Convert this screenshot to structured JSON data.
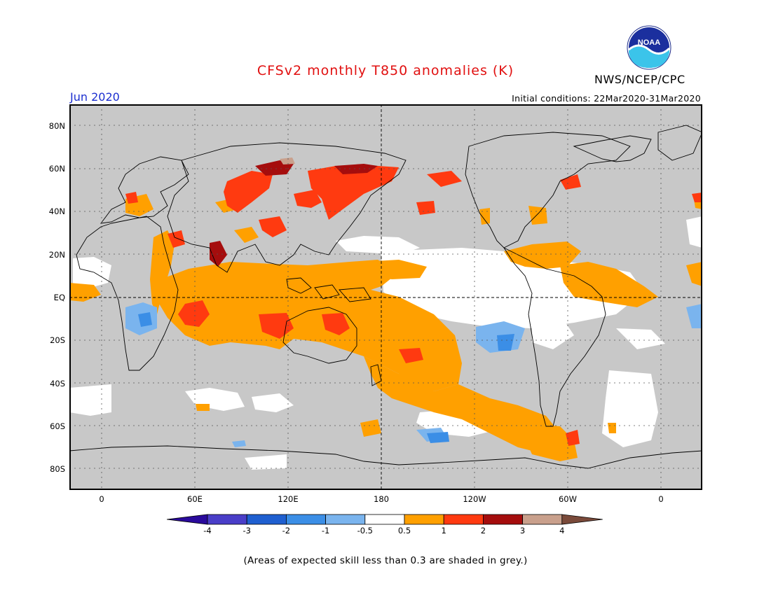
{
  "title": "CFSv2 monthly T850 anomalies (K)",
  "month": "Jun 2020",
  "initial_conditions": "Initial conditions: 22Mar2020-31Mar2020",
  "org": "NWS/NCEP/CPC",
  "logo_text": "NOAA",
  "footnote": "(Areas of expected skill less than 0.3 are shaded in grey.)",
  "lat_labels": [
    "80N",
    "60N",
    "40N",
    "20N",
    "EQ",
    "20S",
    "40S",
    "60S",
    "80S"
  ],
  "lon_labels": [
    "0",
    "60E",
    "120E",
    "180",
    "120W",
    "60W",
    "0"
  ],
  "colorbar": {
    "labels": [
      "-4",
      "-3",
      "-2",
      "-1",
      "-0.5",
      "0.5",
      "1",
      "2",
      "3",
      "4"
    ],
    "colors": [
      "#2a0a9c",
      "#4a3ec8",
      "#1f5fd0",
      "#3b8ee6",
      "#7ab4ee",
      "#ffffff",
      "#ffa000",
      "#ff3a10",
      "#a50d0d",
      "#c9a08c",
      "#7a4a3a"
    ]
  },
  "colors": {
    "grey_mask": "#c8c8c8",
    "neutral": "#ffffff",
    "orange": "#ffa000",
    "red": "#ff3a10",
    "darkred": "#a50d0d",
    "lightblue": "#7ab4ee",
    "blue": "#3b8ee6"
  }
}
